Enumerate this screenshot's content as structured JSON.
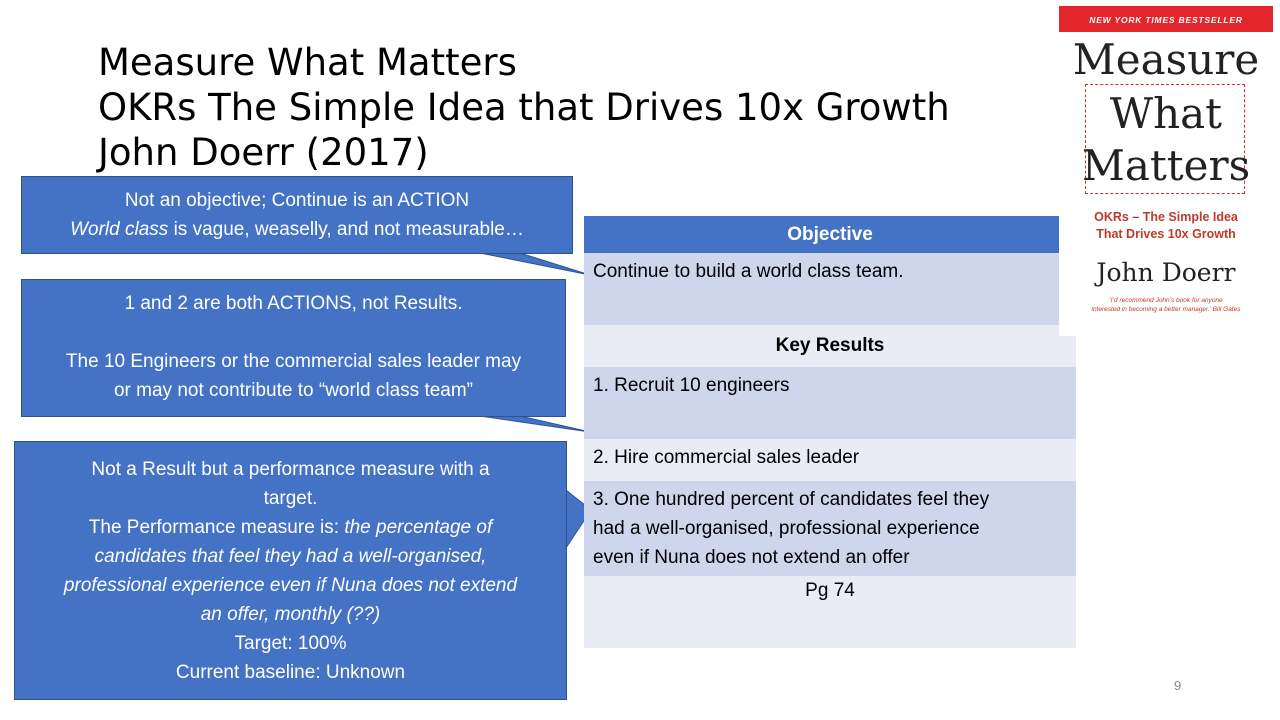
{
  "title": {
    "line1": "Measure What Matters",
    "line2": "OKRs The Simple Idea that Drives 10x Growth",
    "line3": "John Doerr (2017)"
  },
  "table": {
    "objective_header": "Objective",
    "objective": "Continue to build a world class team.",
    "key_results_header": "Key Results",
    "kr1": "1. Recruit 10 engineers",
    "kr2": "2. Hire commercial sales leader",
    "kr3_line1": "3. One hundred percent of candidates feel they",
    "kr3_line2": "had a well-organised, professional experience",
    "kr3_line3": "even if Nuna does not extend an offer",
    "page_ref": "Pg 74"
  },
  "callout1": {
    "line1": "Not an objective; Continue is an ACTION",
    "line2_italic": "World class",
    "line2_rest": " is vague, weaselly, and not measurable…"
  },
  "callout2": {
    "line1": "1 and 2 are both ACTIONS, not Results.",
    "line2": "The 10 Engineers or the commercial sales leader may",
    "line3": "or may not contribute to “world class team”"
  },
  "callout3": {
    "line1": "Not a Result but a performance measure with a",
    "line2": "target.",
    "line3_plain": "The Performance measure is: ",
    "line3_italic": "the percentage of",
    "line4": "candidates that feel they had a well-organised,",
    "line5": "professional experience even if Nuna does not extend",
    "line6": "an offer, monthly (??)",
    "line7": "Target: 100%",
    "line8": "Current baseline: Unknown"
  },
  "book": {
    "banner": "NEW YORK TIMES BESTSELLER",
    "word1": "Measure",
    "word2": "What",
    "word3": "Matters",
    "subtitle1": "OKRs – The Simple Idea",
    "subtitle2": "That Drives 10x Growth",
    "author": "John Doerr",
    "quote1": "‘I’d recommend John’s book for anyone",
    "quote2": "interested in becoming a better manager.’ Bill Gates"
  },
  "page_number": "9",
  "colors": {
    "callout_blue": "#4472c4",
    "row_dark": "#cfd5ea",
    "row_light": "#e9ebf5",
    "book_red": "#e2262c"
  }
}
